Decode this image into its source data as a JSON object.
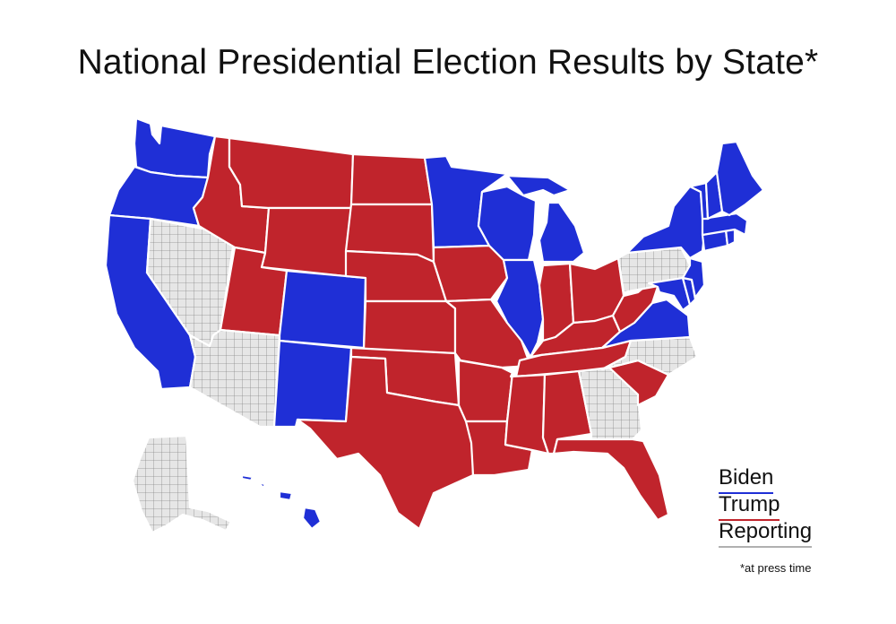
{
  "title": "National Presidential Election Results by State*",
  "colors": {
    "biden": "#1f2fd6",
    "trump": "#c0242c",
    "reporting": "#e6e6e6",
    "grid": "#8a8a8a"
  },
  "legend": [
    {
      "label": "Biden",
      "key": "biden"
    },
    {
      "label": "Trump",
      "key": "trump"
    },
    {
      "label": "Reporting",
      "key": "reporting"
    }
  ],
  "footnote": "*at press time",
  "states": [
    {
      "name": "Washington",
      "result": "biden"
    },
    {
      "name": "Oregon",
      "result": "biden"
    },
    {
      "name": "California",
      "result": "biden"
    },
    {
      "name": "Nevada",
      "result": "reporting"
    },
    {
      "name": "Idaho",
      "result": "trump"
    },
    {
      "name": "Montana",
      "result": "trump"
    },
    {
      "name": "Wyoming",
      "result": "trump"
    },
    {
      "name": "Utah",
      "result": "trump"
    },
    {
      "name": "Arizona",
      "result": "reporting"
    },
    {
      "name": "Colorado",
      "result": "biden"
    },
    {
      "name": "New Mexico",
      "result": "biden"
    },
    {
      "name": "North Dakota",
      "result": "trump"
    },
    {
      "name": "South Dakota",
      "result": "trump"
    },
    {
      "name": "Nebraska",
      "result": "trump"
    },
    {
      "name": "Kansas",
      "result": "trump"
    },
    {
      "name": "Oklahoma",
      "result": "trump"
    },
    {
      "name": "Texas",
      "result": "trump"
    },
    {
      "name": "Minnesota",
      "result": "biden"
    },
    {
      "name": "Iowa",
      "result": "trump"
    },
    {
      "name": "Missouri",
      "result": "trump"
    },
    {
      "name": "Arkansas",
      "result": "trump"
    },
    {
      "name": "Louisiana",
      "result": "trump"
    },
    {
      "name": "Wisconsin",
      "result": "biden"
    },
    {
      "name": "Illinois",
      "result": "biden"
    },
    {
      "name": "Michigan",
      "result": "biden"
    },
    {
      "name": "Indiana",
      "result": "trump"
    },
    {
      "name": "Ohio",
      "result": "trump"
    },
    {
      "name": "Kentucky",
      "result": "trump"
    },
    {
      "name": "Tennessee",
      "result": "trump"
    },
    {
      "name": "Mississippi",
      "result": "trump"
    },
    {
      "name": "Alabama",
      "result": "trump"
    },
    {
      "name": "Georgia",
      "result": "reporting"
    },
    {
      "name": "Florida",
      "result": "trump"
    },
    {
      "name": "South Carolina",
      "result": "trump"
    },
    {
      "name": "North Carolina",
      "result": "reporting"
    },
    {
      "name": "Virginia",
      "result": "biden"
    },
    {
      "name": "West Virginia",
      "result": "trump"
    },
    {
      "name": "Pennsylvania",
      "result": "reporting"
    },
    {
      "name": "New York",
      "result": "biden"
    },
    {
      "name": "Maryland",
      "result": "biden"
    },
    {
      "name": "Delaware",
      "result": "biden"
    },
    {
      "name": "New Jersey",
      "result": "biden"
    },
    {
      "name": "Connecticut",
      "result": "biden"
    },
    {
      "name": "Rhode Island",
      "result": "biden"
    },
    {
      "name": "Massachusetts",
      "result": "biden"
    },
    {
      "name": "Vermont",
      "result": "biden"
    },
    {
      "name": "New Hampshire",
      "result": "biden"
    },
    {
      "name": "Maine",
      "result": "biden"
    },
    {
      "name": "Alaska",
      "result": "reporting"
    },
    {
      "name": "Hawaii",
      "result": "biden"
    },
    {
      "name": "District of Columbia",
      "result": "trump"
    }
  ]
}
